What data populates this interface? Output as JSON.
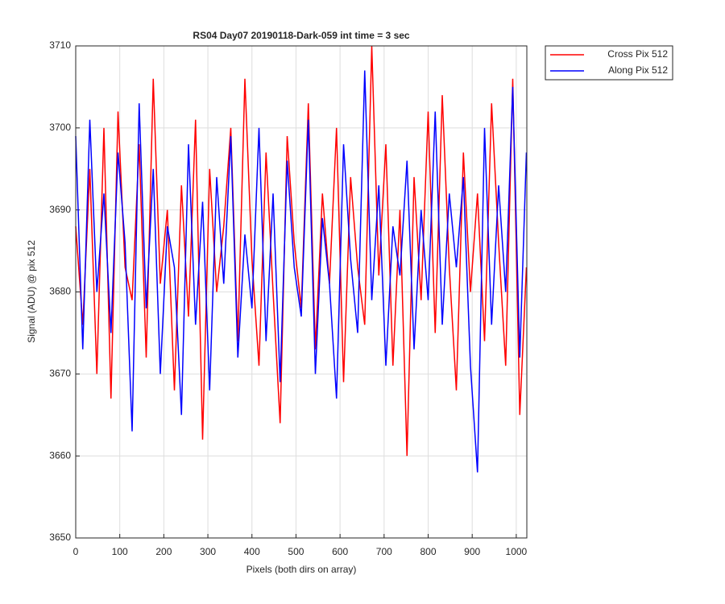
{
  "chart_data": {
    "type": "line",
    "title": "RS04 Day07 20190118-Dark-059 int time = 3 sec",
    "x_label": "Pixels (both dirs on array)",
    "y_label": "Signal (ADU) @ pix 512",
    "x": [
      0,
      16,
      32,
      48,
      64,
      80,
      96,
      112,
      128,
      144,
      160,
      176,
      192,
      208,
      224,
      240,
      256,
      272,
      288,
      304,
      320,
      336,
      352,
      368,
      384,
      400,
      416,
      432,
      448,
      464,
      480,
      496,
      512,
      528,
      544,
      560,
      576,
      592,
      608,
      624,
      640,
      656,
      672,
      688,
      704,
      720,
      736,
      752,
      768,
      784,
      800,
      816,
      832,
      848,
      864,
      880,
      896,
      912,
      928,
      944,
      960,
      976,
      992,
      1008,
      1023
    ],
    "series": [
      {
        "name": "Cross Pix 512",
        "color": "#ff0000",
        "values": [
          3688,
          3676,
          3695,
          3670,
          3700,
          3667,
          3702,
          3683,
          3679,
          3698,
          3672,
          3706,
          3681,
          3690,
          3668,
          3693,
          3677,
          3701,
          3662,
          3695,
          3680,
          3688,
          3700,
          3674,
          3706,
          3684,
          3671,
          3697,
          3680,
          3664,
          3699,
          3686,
          3678,
          3703,
          3673,
          3692,
          3681,
          3700,
          3669,
          3694,
          3683,
          3676,
          3710,
          3682,
          3698,
          3671,
          3690,
          3660,
          3694,
          3679,
          3702,
          3675,
          3704,
          3683,
          3668,
          3697,
          3680,
          3692,
          3674,
          3703,
          3686,
          3671,
          3706,
          3665,
          3683
        ]
      },
      {
        "name": "Along Pix 512",
        "color": "#0000ff",
        "values": [
          3699,
          3673,
          3701,
          3680,
          3692,
          3675,
          3697,
          3686,
          3663,
          3703,
          3678,
          3695,
          3670,
          3688,
          3683,
          3665,
          3698,
          3676,
          3691,
          3668,
          3694,
          3681,
          3699,
          3672,
          3687,
          3678,
          3700,
          3674,
          3692,
          3669,
          3696,
          3683,
          3677,
          3701,
          3670,
          3689,
          3681,
          3667,
          3698,
          3684,
          3675,
          3707,
          3679,
          3693,
          3671,
          3688,
          3682,
          3696,
          3673,
          3690,
          3679,
          3702,
          3676,
          3692,
          3683,
          3694,
          3671,
          3658,
          3700,
          3676,
          3693,
          3680,
          3705,
          3672,
          3697
        ]
      }
    ],
    "xlim": [
      0,
      1024
    ],
    "xticks": [
      0,
      100,
      200,
      300,
      400,
      500,
      600,
      700,
      800,
      900,
      1000
    ],
    "ylim": [
      3650,
      3710
    ],
    "yticks": [
      3650,
      3660,
      3670,
      3680,
      3690,
      3700,
      3710
    ],
    "grid": true,
    "legend": "outside-top-right"
  }
}
